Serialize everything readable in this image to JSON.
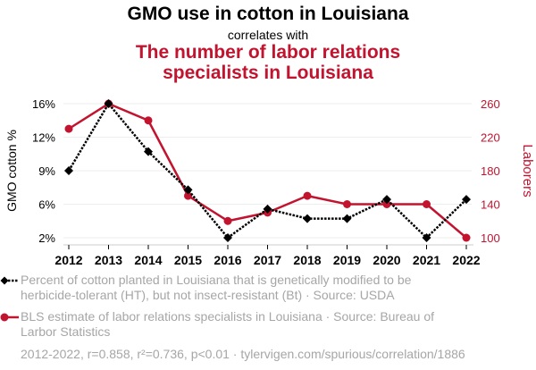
{
  "title": "GMO use in cotton in Louisiana",
  "subtitle": "correlates with",
  "title2": "The number of labor relations specialists in Louisiana",
  "colors": {
    "series1": "#000000",
    "series2": "#C2132F",
    "grid": "#EEEEEE",
    "legend_text": "#A6A6A6"
  },
  "legend": [
    {
      "icon": "black-dotted-diamond-line",
      "text": "Percent of cotton planted in Louisiana that is genetically modified to be herbicide-tolerant (HT), but not insect-resistant (Bt) · Source: USDA"
    },
    {
      "icon": "red-solid-circle-line",
      "text": "BLS estimate of labor relations specialists in Louisiana · Source: Bureau of Larbor Statistics"
    }
  ],
  "footer": "2012-2022, r=0.858, r²=0.736, p<0.01 · tylervigen.com/spurious/correlation/1886",
  "chart_data": {
    "type": "line",
    "title": "GMO use in cotton in Louisiana correlates with The number of labor relations specialists in Louisiana",
    "x": [
      2012,
      2013,
      2014,
      2015,
      2016,
      2017,
      2018,
      2019,
      2020,
      2021,
      2022
    ],
    "xlabel": "",
    "ylabel_left": "GMO cotton %",
    "ylabel_right": "Laborers",
    "ylim_left": [
      2,
      16
    ],
    "ylim_right": [
      100,
      260
    ],
    "yticks_left": [
      "16%",
      "12%",
      "9%",
      "6%",
      "2%"
    ],
    "yticks_left_values": [
      16,
      12.5,
      9,
      5.5,
      2
    ],
    "yticks_right": [
      "260",
      "220",
      "180",
      "140",
      "100"
    ],
    "yticks_right_values": [
      260,
      220,
      180,
      140,
      100
    ],
    "grid": true,
    "legend_position": "bottom",
    "series": [
      {
        "name": "Percent of cotton planted in Louisiana that is genetically modified to be herbicide-tolerant (HT), but not insect-resistant (Bt)",
        "axis": "left",
        "style": "dotted",
        "marker": "diamond",
        "color": "#000000",
        "values": [
          9,
          16,
          11,
          7,
          2,
          5,
          4,
          4,
          6,
          2,
          6
        ]
      },
      {
        "name": "BLS estimate of labor relations specialists in Louisiana",
        "axis": "right",
        "style": "solid",
        "marker": "circle",
        "color": "#C2132F",
        "values": [
          230,
          260,
          240,
          150,
          120,
          130,
          150,
          140,
          140,
          140,
          100
        ]
      }
    ]
  }
}
